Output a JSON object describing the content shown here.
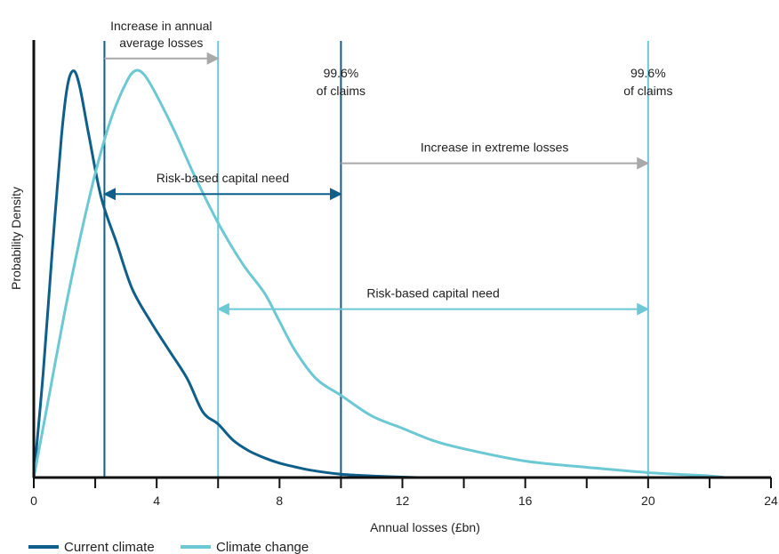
{
  "chart_data": {
    "type": "line",
    "title": "",
    "xlabel": "Annual losses (£bn)",
    "ylabel": "Probability Density",
    "xlim": [
      0,
      24
    ],
    "ylim": [
      0,
      1
    ],
    "x_ticks": [
      0,
      4,
      8,
      12,
      16,
      20,
      24
    ],
    "x_minor_ticks": [
      2,
      6,
      10,
      14,
      18,
      22
    ],
    "grid": false,
    "legend_position": "bottom-left",
    "series": [
      {
        "name": "Current climate",
        "color": "#0e5f8a",
        "x": [
          0,
          0.3,
          0.6,
          0.9,
          1.1,
          1.3,
          1.5,
          1.8,
          2.2,
          2.7,
          3.2,
          3.8,
          4.4,
          5.0,
          5.5,
          6.0,
          6.5,
          7.0,
          7.5,
          8.0,
          8.5,
          9.0,
          10.0,
          11.0,
          12.0,
          12.5
        ],
        "y": [
          0.0,
          0.25,
          0.55,
          0.83,
          0.955,
          0.99,
          0.95,
          0.83,
          0.68,
          0.57,
          0.46,
          0.38,
          0.31,
          0.24,
          0.16,
          0.13,
          0.09,
          0.065,
          0.048,
          0.035,
          0.026,
          0.018,
          0.008,
          0.004,
          0.001,
          0.0
        ]
      },
      {
        "name": "Climate change",
        "color": "#6cc8d3",
        "x": [
          0,
          0.5,
          1.0,
          1.5,
          2.0,
          2.5,
          3.0,
          3.3,
          3.6,
          4.0,
          4.6,
          5.2,
          6.0,
          6.8,
          7.5,
          8.0,
          8.5,
          9.2,
          10.0,
          11.0,
          12.0,
          13.0,
          14.0,
          16.0,
          18.0,
          20.0,
          22.0,
          22.5
        ],
        "y": [
          0.0,
          0.2,
          0.4,
          0.58,
          0.74,
          0.87,
          0.96,
          0.99,
          0.98,
          0.93,
          0.84,
          0.74,
          0.62,
          0.52,
          0.45,
          0.38,
          0.31,
          0.24,
          0.2,
          0.15,
          0.12,
          0.09,
          0.07,
          0.04,
          0.025,
          0.012,
          0.004,
          0.0
        ]
      }
    ],
    "vertical_lines": [
      {
        "x": 2.3,
        "color": "#0e5f8a"
      },
      {
        "x": 6.0,
        "color": "#6cc8d3"
      },
      {
        "x": 10.0,
        "color": "#0e5f8a",
        "label_line1": "99.6%",
        "label_line2": "of claims"
      },
      {
        "x": 20.0,
        "color": "#6cc8d3",
        "label_line1": "99.6%",
        "label_line2": "of claims"
      }
    ],
    "annotations": [
      {
        "text_line1": "Increase in annual",
        "text_line2": "average losses",
        "x1": 2.3,
        "x2": 6.0,
        "y": 1.02,
        "arrow": "end",
        "color": "#a9a9a9"
      },
      {
        "text": "Increase in extreme losses",
        "x1": 10.0,
        "x2": 20.0,
        "y": 0.765,
        "arrow": "end",
        "color": "#a9a9a9"
      },
      {
        "text": "Risk-based capital need",
        "x1": 2.3,
        "x2": 10.0,
        "y": 0.69,
        "arrow": "both",
        "color": "#0e5f8a"
      },
      {
        "text": "Risk-based capital need",
        "x1": 6.0,
        "x2": 20.0,
        "y": 0.41,
        "arrow": "both",
        "color": "#6cc8d3"
      }
    ]
  }
}
